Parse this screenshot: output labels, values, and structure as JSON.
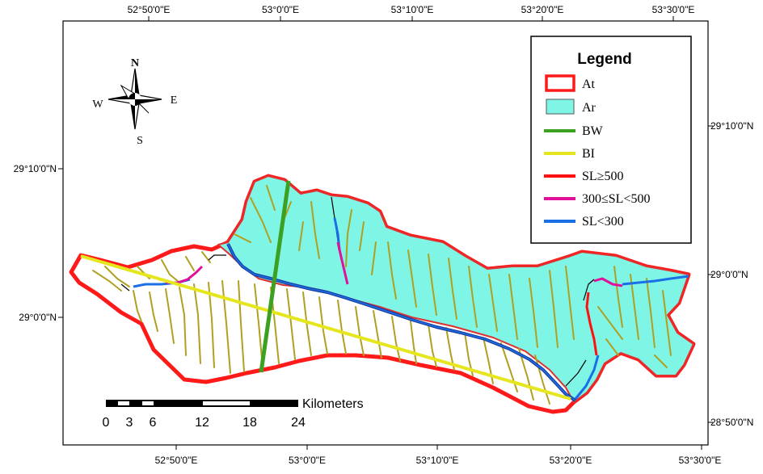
{
  "top_labels": [
    "52°50'0\"E",
    "53°0'0\"E",
    "53°10'0\"E",
    "53°20'0\"E",
    "53°30'0\"E"
  ],
  "bottom_labels": [
    "52°50'0\"E",
    "53°0'0\"E",
    "53°10'0\"E",
    "53°20'0\"E",
    "53°30'0\"E"
  ],
  "left_labels": [
    "29°10'0\"N",
    "29°0'0\"N"
  ],
  "right_labels": [
    "29°10'0\"N",
    "29°0'0\"N",
    "28°50'0\"N"
  ],
  "compass": {
    "n": "N",
    "s": "S",
    "e": "E",
    "w": "W"
  },
  "legend": {
    "title": "Legend",
    "items": [
      {
        "label": "At",
        "symbol": "box-outline",
        "color": "#ff1a1a"
      },
      {
        "label": "Ar",
        "symbol": "box-fill",
        "color": "#7ff5e6"
      },
      {
        "label": "BW",
        "symbol": "line",
        "color": "#3ca020"
      },
      {
        "label": "BI",
        "symbol": "line",
        "color": "#e6e61e"
      },
      {
        "label": "SL≥500",
        "symbol": "line",
        "color": "#ff1010"
      },
      {
        "label": "300≤SL<500",
        "symbol": "line",
        "color": "#e0109a"
      },
      {
        "label": "SL<300",
        "symbol": "line",
        "color": "#1a6ee6"
      }
    ]
  },
  "scalebar": {
    "unit": "Kilometers",
    "ticks": [
      "0",
      "3",
      "6",
      "12",
      "18",
      "24"
    ]
  },
  "colors": {
    "boundary": "#ff1a1a",
    "region_fill": "#7ff5e6",
    "drainage": "#b0a020",
    "main_channel": "#1a3fa0"
  }
}
